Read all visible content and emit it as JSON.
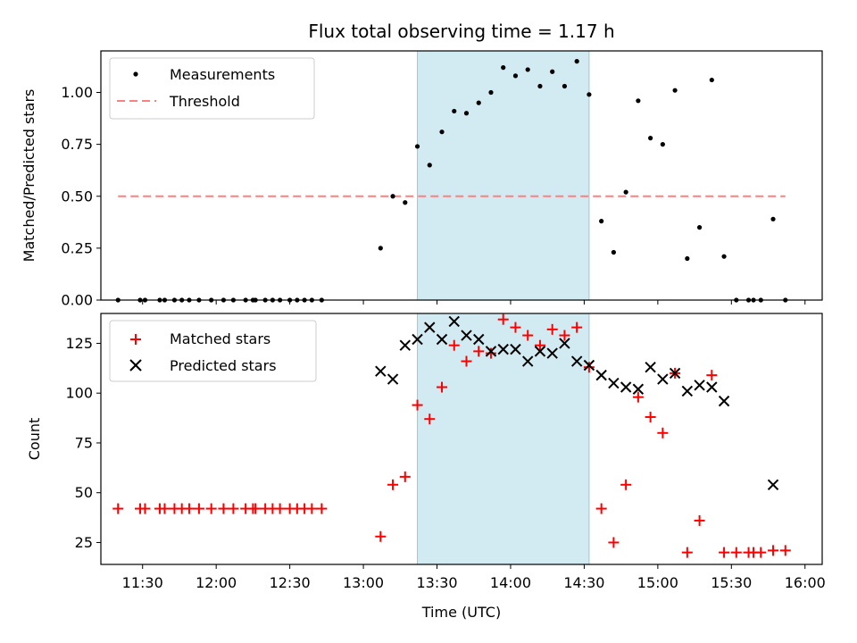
{
  "colors": {
    "shade": "#add8e6",
    "threshold": "#ff7f7f",
    "measure": "#000000",
    "matched": "#ff0000",
    "predicted": "#000000"
  },
  "chart_data": [
    {
      "type": "scatter",
      "title": "Flux total observing time = 1.17 h",
      "xlabel": "",
      "ylabel": "Matched/Predicted stars",
      "xlim": [
        "11:13",
        "16:07"
      ],
      "ylim": [
        0,
        1.2
      ],
      "yticks": [
        0,
        0.25,
        0.5,
        0.75,
        1.0
      ],
      "ytick_labels": [
        "0.00",
        "0.25",
        "0.50",
        "0.75",
        "1.00"
      ],
      "grid": false,
      "legend_location": "upper left",
      "shaded_region": {
        "start": "13:22",
        "end": "14:32"
      },
      "series": [
        {
          "name": "Measurements",
          "marker": "dot",
          "x": [
            "11:20",
            "11:29",
            "11:31",
            "11:37",
            "11:39",
            "11:43",
            "11:46",
            "11:49",
            "11:53",
            "11:58",
            "12:03",
            "12:07",
            "12:12",
            "12:15",
            "12:16",
            "12:20",
            "12:23",
            "12:26",
            "12:30",
            "12:33",
            "12:36",
            "12:39",
            "12:43",
            "13:07",
            "13:12",
            "13:17",
            "13:22",
            "13:27",
            "13:32",
            "13:37",
            "13:42",
            "13:47",
            "13:52",
            "13:57",
            "14:02",
            "14:07",
            "14:12",
            "14:17",
            "14:22",
            "14:27",
            "14:32",
            "14:37",
            "14:42",
            "14:47",
            "14:52",
            "14:57",
            "15:02",
            "15:07",
            "15:12",
            "15:17",
            "15:22",
            "15:27",
            "15:32",
            "15:37",
            "15:39",
            "15:42",
            "15:47",
            "15:52"
          ],
          "y": [
            0.0,
            0.0,
            0.0,
            0.0,
            0.0,
            0.0,
            0.0,
            0.0,
            0.0,
            0.0,
            0.0,
            0.0,
            0.0,
            0.0,
            0.0,
            0.0,
            0.0,
            0.0,
            0.0,
            0.0,
            0.0,
            0.0,
            0.0,
            0.25,
            0.5,
            0.47,
            0.74,
            0.65,
            0.81,
            0.91,
            0.9,
            0.95,
            1.0,
            1.12,
            1.08,
            1.11,
            1.03,
            1.1,
            1.03,
            1.15,
            0.99,
            0.38,
            0.23,
            0.52,
            0.96,
            0.78,
            0.75,
            1.01,
            0.2,
            0.35,
            1.06,
            0.21,
            0.0,
            0.0,
            0.0,
            0.0,
            0.39,
            0.0
          ]
        },
        {
          "name": "Threshold",
          "line": "dashed",
          "x": [
            "11:20",
            "15:52"
          ],
          "y": [
            0.5,
            0.5
          ]
        }
      ]
    },
    {
      "type": "scatter",
      "title": "",
      "xlabel": "Time (UTC)",
      "ylabel": "Count",
      "xlim": [
        "11:13",
        "16:07"
      ],
      "ylim": [
        14,
        140
      ],
      "yticks": [
        25,
        50,
        75,
        100,
        125
      ],
      "ytick_labels": [
        "25",
        "50",
        "75",
        "100",
        "125"
      ],
      "xticks": [
        "11:30",
        "12:00",
        "12:30",
        "13:00",
        "13:30",
        "14:00",
        "14:30",
        "15:00",
        "15:30",
        "16:00"
      ],
      "xtick_labels": [
        "11:30",
        "12:00",
        "12:30",
        "13:00",
        "13:30",
        "14:00",
        "14:30",
        "15:00",
        "15:30",
        "16:00"
      ],
      "grid": false,
      "legend_location": "upper left",
      "shaded_region": {
        "start": "13:22",
        "end": "14:32"
      },
      "series": [
        {
          "name": "Matched stars",
          "marker": "plus",
          "x": [
            "11:20",
            "11:29",
            "11:31",
            "11:37",
            "11:39",
            "11:43",
            "11:46",
            "11:49",
            "11:53",
            "11:58",
            "12:03",
            "12:07",
            "12:12",
            "12:15",
            "12:16",
            "12:20",
            "12:23",
            "12:26",
            "12:30",
            "12:33",
            "12:36",
            "12:39",
            "12:43",
            "13:07",
            "13:12",
            "13:17",
            "13:22",
            "13:27",
            "13:32",
            "13:37",
            "13:42",
            "13:47",
            "13:52",
            "13:57",
            "14:02",
            "14:07",
            "14:12",
            "14:17",
            "14:22",
            "14:27",
            "14:32",
            "14:37",
            "14:42",
            "14:47",
            "14:52",
            "14:57",
            "15:02",
            "15:07",
            "15:12",
            "15:17",
            "15:22",
            "15:27",
            "15:32",
            "15:37",
            "15:39",
            "15:42",
            "15:47",
            "15:52"
          ],
          "y": [
            42,
            42,
            42,
            42,
            42,
            42,
            42,
            42,
            42,
            42,
            42,
            42,
            42,
            42,
            42,
            42,
            42,
            42,
            42,
            42,
            42,
            42,
            42,
            28,
            54,
            58,
            94,
            87,
            103,
            124,
            116,
            121,
            120,
            137,
            133,
            129,
            124,
            132,
            129,
            133,
            113,
            42,
            25,
            54,
            98,
            88,
            80,
            110,
            20,
            36,
            109,
            20,
            20,
            20,
            20,
            20,
            21,
            21
          ]
        },
        {
          "name": "Predicted stars",
          "marker": "x",
          "x": [
            "13:07",
            "13:12",
            "13:17",
            "13:22",
            "13:27",
            "13:32",
            "13:37",
            "13:42",
            "13:47",
            "13:52",
            "13:57",
            "14:02",
            "14:07",
            "14:12",
            "14:17",
            "14:22",
            "14:27",
            "14:32",
            "14:37",
            "14:42",
            "14:47",
            "14:52",
            "14:57",
            "15:02",
            "15:07",
            "15:12",
            "15:17",
            "15:22",
            "15:27",
            "15:47"
          ],
          "y": [
            111,
            107,
            124,
            127,
            133,
            127,
            136,
            129,
            127,
            121,
            122,
            122,
            116,
            121,
            120,
            125,
            116,
            114,
            109,
            105,
            103,
            102,
            113,
            107,
            110,
            101,
            104,
            103,
            96,
            54
          ]
        }
      ]
    }
  ]
}
